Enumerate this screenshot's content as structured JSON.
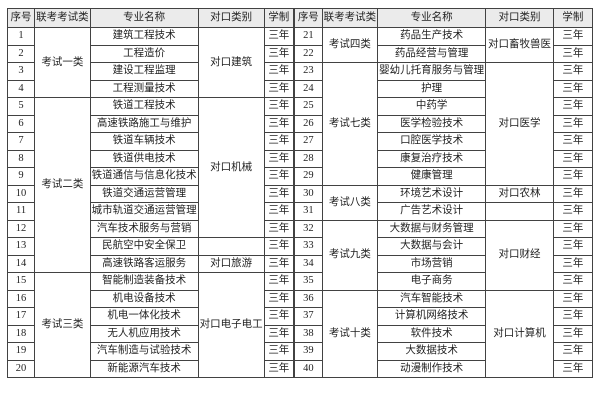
{
  "colors": {
    "border": "#424242",
    "header_bg": "#ebebeb",
    "text": "#1f1f1f",
    "page_bg": "#ffffff"
  },
  "headers": [
    "序号",
    "联考考试类",
    "专业名称",
    "对口类别",
    "学制"
  ],
  "tables": [
    {
      "name": "left",
      "rows": [
        {
          "no": "1",
          "major": "建筑工程技术",
          "duration": "三年"
        },
        {
          "no": "2",
          "major": "工程造价",
          "duration": "三年"
        },
        {
          "no": "3",
          "major": "建设工程监理",
          "duration": "三年"
        },
        {
          "no": "4",
          "major": "工程测量技术",
          "duration": "三年"
        },
        {
          "no": "5",
          "major": "铁道工程技术",
          "duration": "三年"
        },
        {
          "no": "6",
          "major": "高速铁路施工与维护",
          "duration": "三年"
        },
        {
          "no": "7",
          "major": "铁道车辆技术",
          "duration": "三年"
        },
        {
          "no": "8",
          "major": "铁道供电技术",
          "duration": "三年"
        },
        {
          "no": "9",
          "major": "铁道通信与信息化技术",
          "duration": "三年"
        },
        {
          "no": "10",
          "major": "铁道交通运营管理",
          "duration": "三年"
        },
        {
          "no": "11",
          "major": "城市轨道交通运营管理",
          "duration": "三年"
        },
        {
          "no": "12",
          "major": "汽车技术服务与营销",
          "duration": "三年"
        },
        {
          "no": "13",
          "major": "民航空中安全保卫",
          "duration": "三年"
        },
        {
          "no": "14",
          "major": "高速铁路客运服务",
          "duration": "三年"
        },
        {
          "no": "15",
          "major": "智能制造装备技术",
          "duration": "三年"
        },
        {
          "no": "16",
          "major": "机电设备技术",
          "duration": "三年"
        },
        {
          "no": "17",
          "major": "机电一体化技术",
          "duration": "三年"
        },
        {
          "no": "18",
          "major": "无人机应用技术",
          "duration": "三年"
        },
        {
          "no": "19",
          "major": "汽车制造与试验技术",
          "duration": "三年"
        },
        {
          "no": "20",
          "major": "新能源汽车技术",
          "duration": "三年"
        }
      ],
      "exam_groups": [
        {
          "label": "考试一类",
          "start": 0,
          "span": 4
        },
        {
          "label": "考试二类",
          "start": 4,
          "span": 10
        },
        {
          "label": "考试三类",
          "start": 14,
          "span": 6
        }
      ],
      "category_groups": [
        {
          "label": "对口建筑",
          "start": 0,
          "span": 4
        },
        {
          "label": "对口机械",
          "start": 4,
          "span": 8
        },
        {
          "label": "",
          "start": 12,
          "span": 1
        },
        {
          "label": "对口旅游",
          "start": 13,
          "span": 1
        },
        {
          "label": "对口电子电工",
          "start": 14,
          "span": 6
        }
      ]
    },
    {
      "name": "right",
      "rows": [
        {
          "no": "21",
          "major": "药品生产技术",
          "duration": "三年"
        },
        {
          "no": "22",
          "major": "药品经营与管理",
          "duration": "三年"
        },
        {
          "no": "23",
          "major": "婴幼儿托育服务与管理",
          "duration": "三年"
        },
        {
          "no": "24",
          "major": "护理",
          "duration": "三年"
        },
        {
          "no": "25",
          "major": "中药学",
          "duration": "三年"
        },
        {
          "no": "26",
          "major": "医学检验技术",
          "duration": "三年"
        },
        {
          "no": "27",
          "major": "口腔医学技术",
          "duration": "三年"
        },
        {
          "no": "28",
          "major": "康复治疗技术",
          "duration": "三年"
        },
        {
          "no": "29",
          "major": "健康管理",
          "duration": "三年"
        },
        {
          "no": "30",
          "major": "环境艺术设计",
          "duration": "三年"
        },
        {
          "no": "31",
          "major": "广告艺术设计",
          "duration": "三年"
        },
        {
          "no": "32",
          "major": "大数据与财务管理",
          "duration": "三年"
        },
        {
          "no": "33",
          "major": "大数据与会计",
          "duration": "三年"
        },
        {
          "no": "34",
          "major": "市场营销",
          "duration": "三年"
        },
        {
          "no": "35",
          "major": "电子商务",
          "duration": "三年"
        },
        {
          "no": "36",
          "major": "汽车智能技术",
          "duration": "三年"
        },
        {
          "no": "37",
          "major": "计算机网络技术",
          "duration": "三年"
        },
        {
          "no": "38",
          "major": "软件技术",
          "duration": "三年"
        },
        {
          "no": "39",
          "major": "大数据技术",
          "duration": "三年"
        },
        {
          "no": "40",
          "major": "动漫制作技术",
          "duration": "三年"
        }
      ],
      "exam_groups": [
        {
          "label": "考试四类",
          "start": 0,
          "span": 2
        },
        {
          "label": "考试七类",
          "start": 2,
          "span": 7
        },
        {
          "label": "考试八类",
          "start": 9,
          "span": 2
        },
        {
          "label": "考试九类",
          "start": 11,
          "span": 4
        },
        {
          "label": "考试十类",
          "start": 15,
          "span": 5
        }
      ],
      "category_groups": [
        {
          "label": "对口畜牧兽医",
          "start": 0,
          "span": 2
        },
        {
          "label": "对口医学",
          "start": 2,
          "span": 7
        },
        {
          "label": "对口农林",
          "start": 9,
          "span": 1
        },
        {
          "label": "",
          "start": 10,
          "span": 1
        },
        {
          "label": "对口财经",
          "start": 11,
          "span": 4
        },
        {
          "label": "对口计算机",
          "start": 15,
          "span": 5
        }
      ]
    }
  ]
}
